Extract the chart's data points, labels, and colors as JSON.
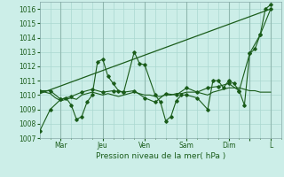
{
  "bg_color": "#cceee8",
  "grid_color": "#aad8d0",
  "line_color": "#1a5c1a",
  "marker_color": "#1a5c1a",
  "xlabel": "Pression niveau de la mer( hPa )",
  "ylim": [
    1007,
    1016.5
  ],
  "yticks": [
    1007,
    1008,
    1009,
    1010,
    1011,
    1012,
    1013,
    1014,
    1015,
    1016
  ],
  "xlim": [
    0,
    46
  ],
  "day_positions": [
    4,
    12,
    20,
    28,
    36,
    40,
    44
  ],
  "day_labels": [
    "Mar",
    "Jeu",
    "Ven",
    "Sam",
    "Dim",
    "",
    "L"
  ],
  "minor_grid_positions": [
    0,
    1,
    2,
    3,
    4,
    5,
    6,
    7,
    8,
    9,
    10,
    11,
    12,
    13,
    14,
    15,
    16,
    17,
    18,
    19,
    20,
    21,
    22,
    23,
    24,
    25,
    26,
    27,
    28,
    29,
    30,
    31,
    32,
    33,
    34,
    35,
    36,
    37,
    38,
    39,
    40,
    41,
    42,
    43,
    44,
    45,
    46
  ],
  "series1_x": [
    0,
    1,
    2,
    3,
    4,
    5,
    6,
    7,
    8,
    9,
    10,
    11,
    12,
    13,
    14,
    15,
    16,
    17,
    18,
    19,
    20,
    21,
    22,
    23,
    24,
    25,
    26,
    27,
    28,
    29,
    30,
    31,
    32,
    33,
    34,
    35,
    36,
    37,
    38,
    39,
    40,
    41,
    42,
    43,
    44
  ],
  "series1_y": [
    1010.3,
    1010.2,
    1010.1,
    1009.8,
    1009.6,
    1009.7,
    1009.8,
    1009.7,
    1010.0,
    1010.1,
    1010.2,
    1010.1,
    1010.0,
    1010.1,
    1010.0,
    1009.9,
    1010.0,
    1010.1,
    1010.2,
    1010.1,
    1010.0,
    1010.0,
    1009.9,
    1009.9,
    1010.0,
    1010.0,
    1010.1,
    1010.1,
    1010.2,
    1010.2,
    1010.2,
    1010.1,
    1010.0,
    1010.2,
    1010.3,
    1010.4,
    1010.5,
    1010.5,
    1010.5,
    1010.4,
    1010.3,
    1010.3,
    1010.2,
    1010.2,
    1010.2
  ],
  "series2_x": [
    0,
    2,
    4,
    5,
    6,
    7,
    8,
    9,
    10,
    11,
    12,
    13,
    14,
    15,
    16,
    18,
    19,
    20,
    22,
    23,
    24,
    25,
    26,
    27,
    28,
    30,
    32,
    33,
    34,
    35,
    36,
    37,
    38,
    39,
    40,
    41,
    42,
    43,
    44
  ],
  "series2_y": [
    1007.5,
    1009.0,
    1009.7,
    1009.8,
    1009.3,
    1008.3,
    1008.5,
    1009.5,
    1010.0,
    1012.3,
    1012.5,
    1011.3,
    1010.8,
    1010.3,
    1010.2,
    1013.0,
    1012.2,
    1012.1,
    1010.0,
    1009.5,
    1008.2,
    1008.5,
    1009.6,
    1010.0,
    1010.0,
    1009.8,
    1009.0,
    1011.0,
    1011.0,
    1010.5,
    1011.0,
    1010.8,
    1010.3,
    1009.3,
    1012.9,
    1013.2,
    1014.2,
    1016.0,
    1016.3
  ],
  "series3_x": [
    0,
    2,
    4,
    6,
    8,
    10,
    12,
    14,
    16,
    18,
    20,
    22,
    24,
    26,
    28,
    30,
    32,
    34,
    36,
    38,
    40,
    42,
    44
  ],
  "series3_y": [
    1010.3,
    1010.3,
    1009.7,
    1009.9,
    1010.2,
    1010.4,
    1010.2,
    1010.3,
    1010.2,
    1010.3,
    1009.8,
    1009.5,
    1010.1,
    1010.0,
    1010.5,
    1010.2,
    1010.5,
    1010.6,
    1010.8,
    1010.3,
    1012.9,
    1014.2,
    1016.0
  ],
  "trend_x": [
    0,
    44
  ],
  "trend_y": [
    1010.1,
    1016.0
  ]
}
